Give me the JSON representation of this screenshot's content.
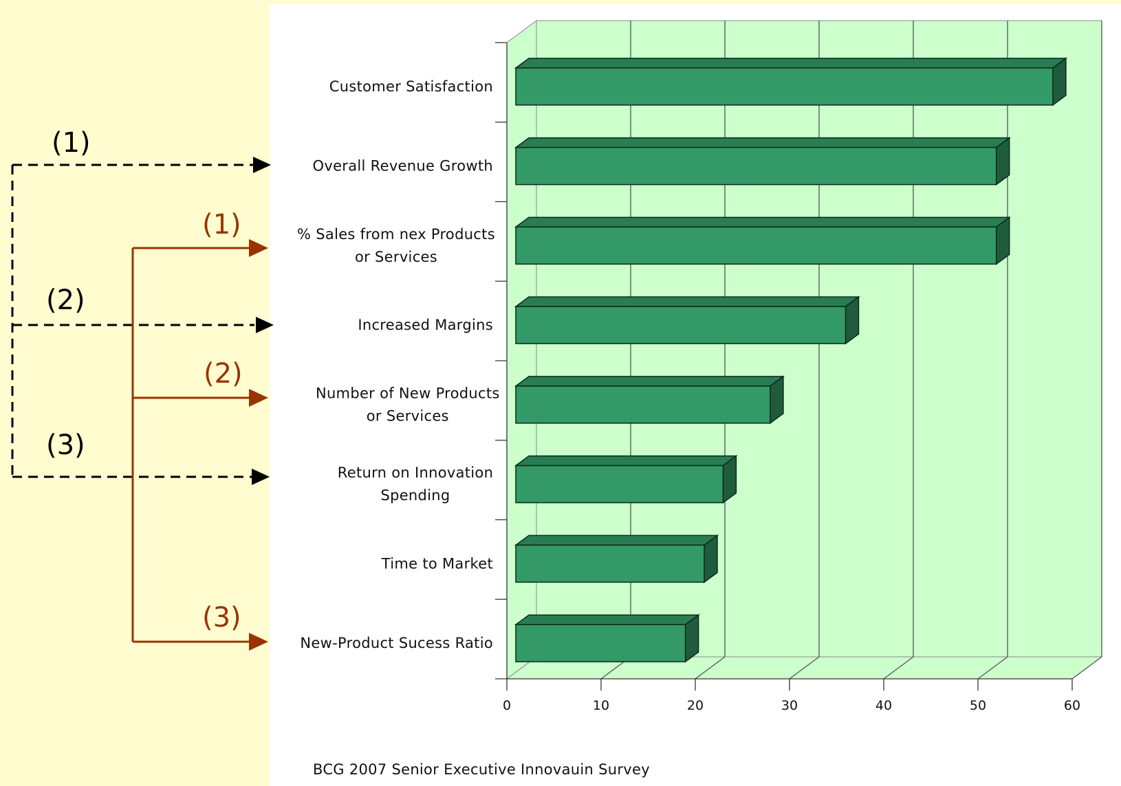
{
  "markers": {
    "black": [
      "(1)",
      "(2)",
      "(3)"
    ],
    "red": [
      "(1)",
      "(2)",
      "(3)"
    ]
  },
  "colors": {
    "background": "#fffdd0",
    "plot_background": "#ccffcc",
    "bar_front": "#339966",
    "bar_top": "#2a7d53",
    "bar_side": "#1f5c3d",
    "red_arrow": "#993300",
    "black_arrow": "#000000"
  },
  "chart_data": {
    "type": "bar",
    "orientation": "horizontal",
    "categories": [
      [
        "Customer Satisfaction"
      ],
      [
        "Overall Revenue Growth"
      ],
      [
        "% Sales from nex Products",
        "or Services"
      ],
      [
        "Increased Margins"
      ],
      [
        "Number of New Products",
        "or Services"
      ],
      [
        "Return on Innovation",
        "Spending"
      ],
      [
        "Time to Market"
      ],
      [
        "New-Product Sucess Ratio"
      ]
    ],
    "values": [
      57,
      51,
      51,
      35,
      27,
      22,
      20,
      18
    ],
    "xlim": [
      0,
      60
    ],
    "xticks": [
      "0",
      "10",
      "20",
      "30",
      "40",
      "50",
      "60"
    ],
    "grid": true,
    "style": "3d",
    "source": "BCG 2007  Senior Executive Innovauin Survey"
  }
}
